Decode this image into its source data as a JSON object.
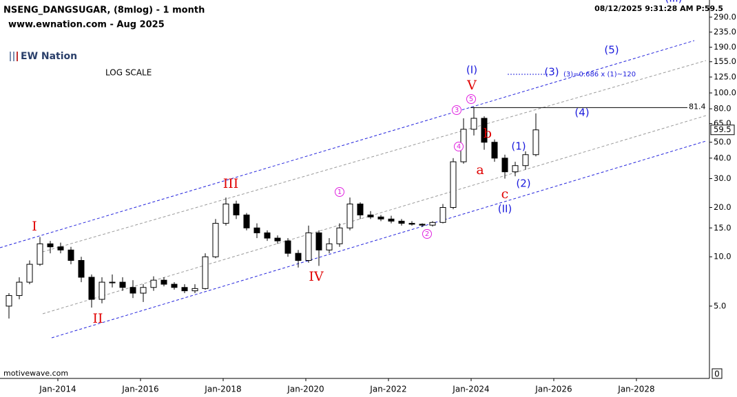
{
  "chart_data": {
    "type": "candlestick",
    "title": "NSENG_DANGSUGAR, (8mlog) - 1 month",
    "subtitle": "www.ewnation.com  - Aug 2025",
    "logo": "EW Nation",
    "scale_note": "LOG SCALE",
    "source": "motivewave.com",
    "timestamp": "08/12/2025 9:31:28 AM  P:59.5",
    "log_scale": true,
    "up_color": "#ffffff",
    "down_color": "#000000",
    "x": [
      2012.75,
      2013.0,
      2013.25,
      2013.5,
      2013.75,
      2014.0,
      2014.25,
      2014.5,
      2014.75,
      2015.0,
      2015.25,
      2015.5,
      2015.75,
      2016.0,
      2016.25,
      2016.5,
      2016.75,
      2017.0,
      2017.25,
      2017.5,
      2017.75,
      2018.0,
      2018.25,
      2018.5,
      2018.75,
      2019.0,
      2019.25,
      2019.5,
      2019.75,
      2020.0,
      2020.25,
      2020.5,
      2020.75,
      2021.0,
      2021.25,
      2021.5,
      2021.75,
      2022.0,
      2022.25,
      2022.5,
      2022.75,
      2023.0,
      2023.25,
      2023.5,
      2023.75,
      2024.0,
      2024.25,
      2024.5,
      2024.75,
      2025.0,
      2025.25,
      2025.5
    ],
    "open": [
      5,
      5.8,
      7,
      9,
      12,
      11.5,
      11,
      9.5,
      7.5,
      5.5,
      7,
      7,
      6.5,
      6,
      6.5,
      7.2,
      6.8,
      6.5,
      6.2,
      6.4,
      10,
      16,
      21,
      18,
      15,
      14,
      13,
      12.5,
      10.5,
      9.5,
      14,
      11,
      12,
      15,
      21,
      18,
      17.5,
      17,
      16.5,
      16,
      15.8,
      15.6,
      16.2,
      20,
      38,
      60,
      70,
      50,
      40,
      33,
      36,
      42
    ],
    "high": [
      6,
      7.5,
      9.5,
      13.2,
      12.5,
      12.2,
      11.5,
      10,
      7.8,
      7.5,
      7.8,
      7.5,
      7.2,
      6.8,
      7.6,
      7.5,
      7,
      6.8,
      6.8,
      10.5,
      17,
      23,
      22,
      18.5,
      16,
      14.5,
      13.5,
      13,
      11,
      15.5,
      14.5,
      13,
      16,
      23,
      21.5,
      19,
      18,
      17.8,
      17,
      16.5,
      16,
      16.5,
      21,
      40,
      70,
      82,
      72,
      52,
      42,
      38,
      44,
      75
    ],
    "low": [
      4.2,
      5.5,
      6.8,
      8.8,
      10.5,
      10.5,
      9,
      7,
      4.9,
      5.2,
      6.5,
      6.2,
      5.6,
      5.3,
      6.2,
      6.6,
      6.3,
      6,
      6,
      6.3,
      9.8,
      15.5,
      17,
      14.5,
      13,
      12.5,
      12,
      10,
      8.6,
      9.2,
      8.8,
      10.5,
      11.5,
      14.5,
      17,
      17,
      16.5,
      16,
      15.5,
      15.5,
      15.2,
      15.3,
      16,
      19.5,
      37,
      55,
      45,
      38,
      30,
      31,
      34,
      41
    ],
    "close": [
      5.8,
      7,
      9,
      12,
      11.5,
      11,
      9.5,
      7.5,
      5.5,
      7,
      7,
      6.5,
      6,
      6.5,
      7.2,
      6.8,
      6.5,
      6.2,
      6.4,
      10,
      16,
      21,
      18,
      15,
      14,
      13,
      12.5,
      10.5,
      9.5,
      14,
      11,
      12,
      15,
      21,
      18,
      17.5,
      17,
      16.5,
      16,
      15.8,
      15.6,
      16.2,
      20,
      38,
      60,
      70,
      50,
      40,
      33,
      36,
      42,
      59.5
    ],
    "xlim": [
      2012.6,
      2029.767
    ],
    "xticks": [
      {
        "value": 2014,
        "label": "Jan-2014"
      },
      {
        "value": 2016,
        "label": "Jan-2016"
      },
      {
        "value": 2018,
        "label": "Jan-2018"
      },
      {
        "value": 2020,
        "label": "Jan-2020"
      },
      {
        "value": 2022,
        "label": "Jan-2022"
      },
      {
        "value": 2024,
        "label": "Jan-2024"
      },
      {
        "value": 2026,
        "label": "Jan-2026"
      },
      {
        "value": 2028,
        "label": "Jan-2028"
      }
    ],
    "ylim": [
      1.81,
      369
    ],
    "yticks": [
      {
        "value": 290,
        "label": "290.0"
      },
      {
        "value": 235,
        "label": "235.0"
      },
      {
        "value": 190,
        "label": "190.0"
      },
      {
        "value": 155,
        "label": "155.0"
      },
      {
        "value": 125,
        "label": "125.0"
      },
      {
        "value": 100,
        "label": "100.0"
      },
      {
        "value": 80,
        "label": "80.0"
      },
      {
        "value": 65,
        "label": "65.0"
      },
      {
        "value": 50,
        "label": "50.0"
      },
      {
        "value": 40,
        "label": "40.0"
      },
      {
        "value": 30,
        "label": "30.0"
      },
      {
        "value": 20,
        "label": "20.0"
      },
      {
        "value": 15,
        "label": "15.0"
      },
      {
        "value": 10,
        "label": "10.0"
      },
      {
        "value": 5,
        "label": "5.0"
      }
    ],
    "y_bottom_label": "0",
    "level": 81.4,
    "annotations": [
      {
        "text": "I",
        "color": "#e00000"
      },
      {
        "text": "II",
        "color": "#e00000"
      },
      {
        "text": "III",
        "color": "#e00000"
      },
      {
        "text": "IV",
        "color": "#e00000"
      },
      {
        "text": "V",
        "color": "#e00000"
      },
      {
        "text": "a",
        "color": "#e00000"
      },
      {
        "text": "b",
        "color": "#e00000"
      },
      {
        "text": "c",
        "color": "#e00000"
      },
      {
        "text": "(I)",
        "color": "#1a1adc"
      },
      {
        "text": "(II)",
        "color": "#1a1adc"
      },
      {
        "text": "(III)",
        "color": "#1a1adc"
      },
      {
        "text": "(1)",
        "color": "#1a1adc"
      },
      {
        "text": "(2)",
        "color": "#1a1adc"
      },
      {
        "text": "(3)",
        "color": "#1a1adc"
      },
      {
        "text": "(4)",
        "color": "#1a1adc"
      },
      {
        "text": "(5)",
        "color": "#1a1adc"
      },
      {
        "text": "1",
        "color": "#e020e0"
      },
      {
        "text": "2",
        "color": "#e020e0"
      },
      {
        "text": "3",
        "color": "#e020e0"
      },
      {
        "text": "4",
        "color": "#e020e0"
      },
      {
        "text": "5",
        "color": "#e020e0"
      },
      {
        "text": "(3)=0.686 x (1)~120",
        "color": "#1a1adc"
      }
    ]
  }
}
